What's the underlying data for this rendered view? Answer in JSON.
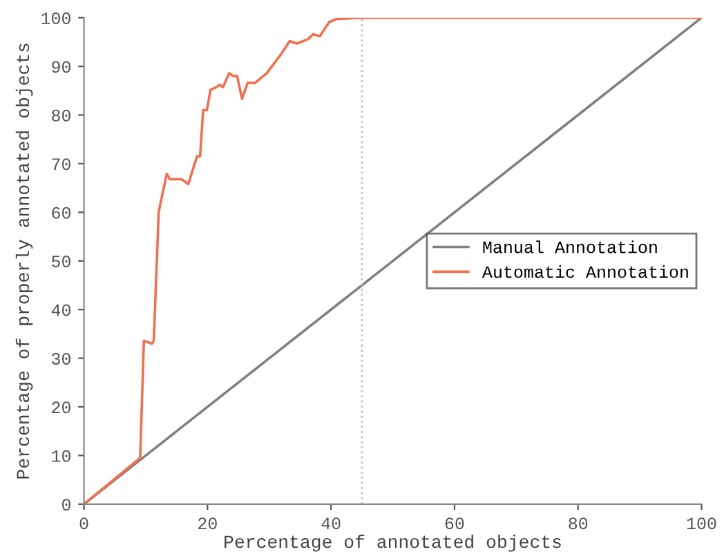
{
  "chart_data": {
    "type": "line",
    "xlabel": "Percentage of annotated objects",
    "ylabel": "Percentage of properly annotated objects",
    "series": [
      {
        "name": "Manual Annotation",
        "color": "#808080",
        "x": [
          0,
          100
        ],
        "values": [
          0,
          100
        ]
      },
      {
        "name": "Automatic Annotation",
        "color": "#f07050",
        "x": [
          0,
          9.1,
          9.7,
          11,
          11.3,
          12.1,
          13.4,
          13.9,
          15.8,
          16.9,
          18.3,
          18.8,
          19.3,
          19.9,
          20.5,
          21.4,
          22.0,
          22.5,
          23.5,
          24.2,
          24.8,
          25.6,
          26.5,
          27.7,
          29.6,
          31.8,
          33.3,
          34.5,
          36.3,
          37.1,
          38.2,
          39.7,
          40.8,
          44.9,
          100
        ],
        "values": [
          0,
          9.5,
          33.6,
          33,
          33.6,
          60.1,
          67.9,
          66.8,
          66.8,
          65.8,
          71.5,
          71.5,
          81,
          81,
          85.2,
          85.7,
          86.2,
          85.7,
          88.6,
          88,
          88,
          83.3,
          86.6,
          86.6,
          88.6,
          92.3,
          95.2,
          94.7,
          95.6,
          96.6,
          96.2,
          99.1,
          99.7,
          100,
          100
        ]
      }
    ],
    "ref_lines": [
      {
        "axis": "x",
        "value": 45,
        "color": "#c0c0c0",
        "line_style": "dotted"
      }
    ],
    "xlim": [
      0,
      100
    ],
    "ylim": [
      0,
      100
    ],
    "xticks": [
      0,
      20,
      40,
      60,
      80,
      100
    ],
    "yticks": [
      0,
      10,
      20,
      30,
      40,
      50,
      60,
      70,
      80,
      90,
      100
    ],
    "grid": false,
    "legend": "right",
    "marker": "none",
    "line_style": "solid"
  }
}
